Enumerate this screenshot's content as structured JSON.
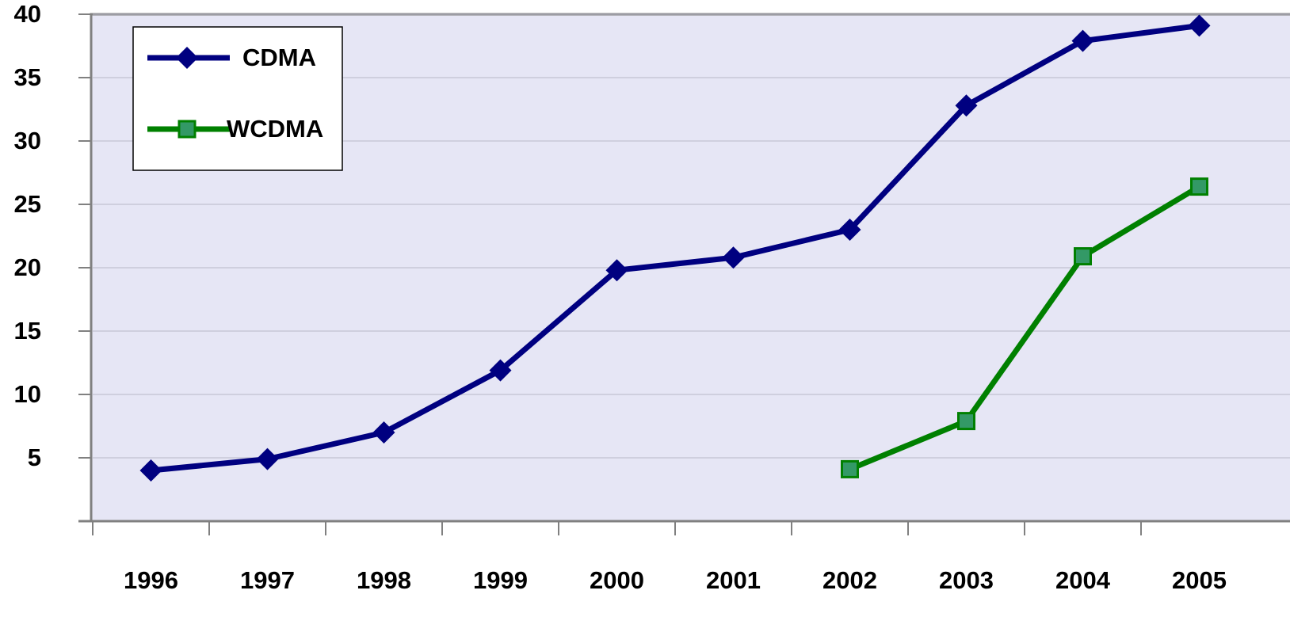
{
  "chart_data": {
    "type": "line",
    "categories": [
      "1996",
      "1997",
      "1998",
      "1999",
      "2000",
      "2001",
      "2002",
      "2003",
      "2004",
      "2005"
    ],
    "series": [
      {
        "name": "CDMA",
        "color": "#000080",
        "marker": "diamond",
        "values": [
          4,
          4.9,
          7,
          11.9,
          19.8,
          20.8,
          23,
          32.8,
          37.9,
          39.1
        ]
      },
      {
        "name": "WCDMA",
        "color": "#008000",
        "marker_fill": "#339966",
        "marker": "square",
        "values": [
          null,
          null,
          null,
          null,
          null,
          null,
          4.1,
          7.9,
          20.9,
          26.4
        ]
      }
    ],
    "ylim": [
      0,
      40
    ],
    "yticks": [
      5,
      10,
      15,
      20,
      25,
      30,
      35,
      40
    ],
    "grid": true,
    "legend": "upper left"
  }
}
